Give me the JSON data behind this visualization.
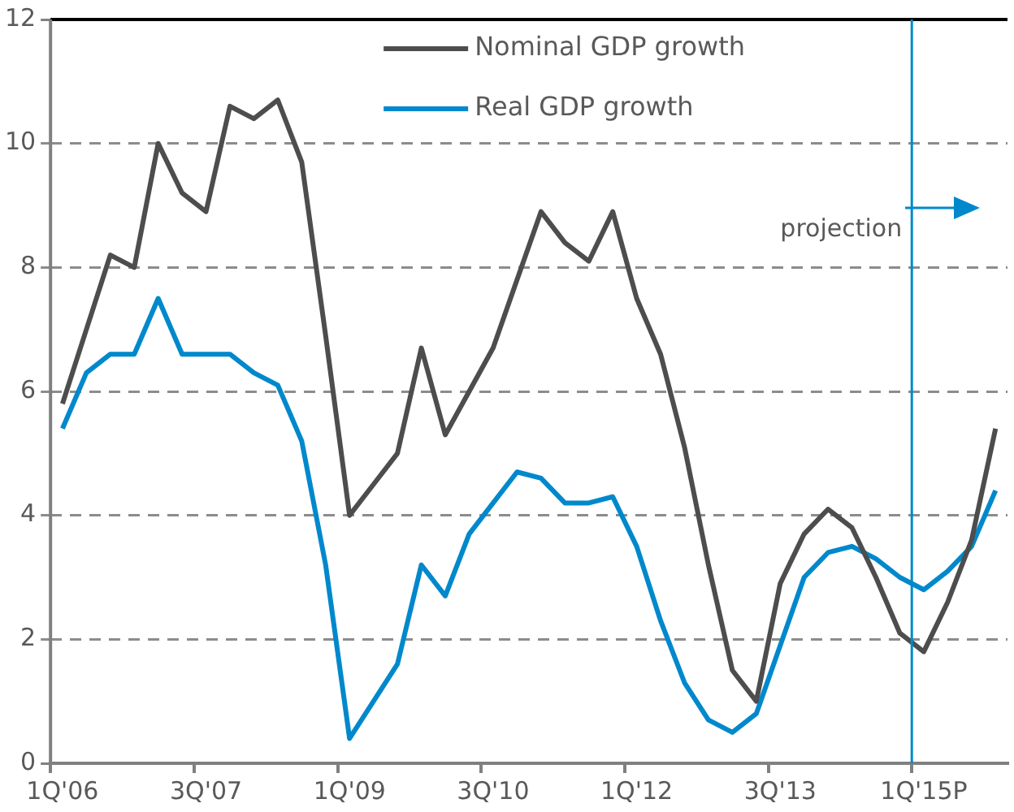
{
  "chart_data": {
    "type": "line",
    "categories": [
      "1Q'06",
      null,
      null,
      null,
      null,
      null,
      "3Q'07",
      null,
      null,
      null,
      null,
      null,
      "1Q'09",
      null,
      null,
      null,
      null,
      null,
      "3Q'10",
      null,
      null,
      null,
      null,
      null,
      "1Q'12",
      null,
      null,
      null,
      null,
      null,
      "3Q'13",
      null,
      null,
      null,
      null,
      null,
      "1Q'15P",
      null,
      null,
      null
    ],
    "series": [
      {
        "name": "Nominal GDP growth",
        "color": "#4d4d4d",
        "values": [
          5.8,
          7.0,
          8.2,
          8.0,
          10.0,
          9.2,
          8.9,
          10.6,
          10.4,
          10.7,
          9.7,
          6.9,
          4.0,
          4.5,
          5.0,
          6.7,
          5.3,
          6.0,
          6.7,
          7.8,
          8.9,
          8.4,
          8.1,
          8.9,
          7.5,
          6.6,
          5.1,
          3.2,
          1.5,
          1.0,
          2.9,
          3.7,
          4.1,
          3.8,
          3.0,
          2.1,
          1.8,
          2.6,
          3.6,
          5.4
        ]
      },
      {
        "name": "Real GDP growth",
        "color": "#0088cc",
        "values": [
          5.4,
          6.3,
          6.6,
          6.6,
          7.5,
          6.6,
          6.6,
          6.6,
          6.3,
          6.1,
          5.2,
          3.2,
          0.4,
          1.0,
          1.6,
          3.2,
          2.7,
          3.7,
          4.2,
          4.7,
          4.6,
          4.2,
          4.2,
          4.3,
          3.5,
          2.3,
          1.3,
          0.7,
          0.5,
          0.8,
          1.9,
          3.0,
          3.4,
          3.5,
          3.3,
          3.0,
          2.8,
          3.1,
          3.5,
          4.4
        ]
      }
    ],
    "ylim": [
      0,
      12
    ],
    "yticks": [
      0,
      2,
      4,
      6,
      8,
      10,
      12
    ],
    "grid": "y",
    "legend": "top right",
    "marker": "none",
    "line_style": "solid",
    "ref_lines": [
      {
        "axis": "x",
        "value": "1Q'15P",
        "label": "projection",
        "color": "#0088cc"
      }
    ]
  }
}
